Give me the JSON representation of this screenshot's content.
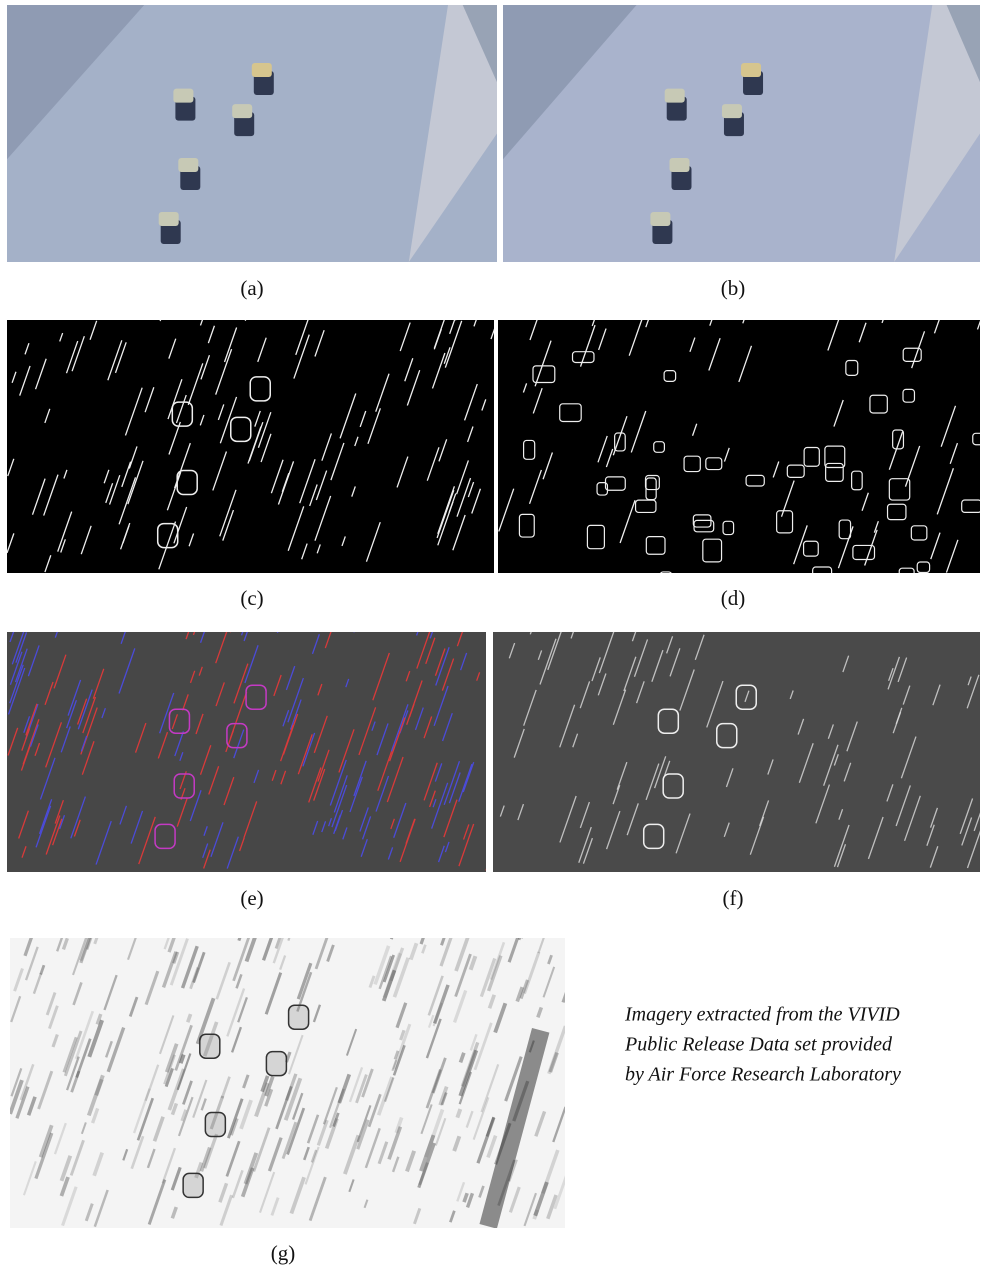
{
  "panels": [
    {
      "label": "(a)"
    },
    {
      "label": "(b)"
    },
    {
      "label": "(c)"
    },
    {
      "label": "(d)"
    },
    {
      "label": "(e)"
    },
    {
      "label": "(f)"
    },
    {
      "label": "(g)"
    }
  ],
  "caption": {
    "lines": [
      "Imagery extracted from the VIVID",
      "Public Release Data set provided",
      "by Air Force Research Laboratory"
    ]
  }
}
